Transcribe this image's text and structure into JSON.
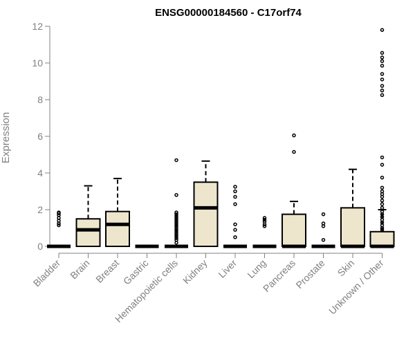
{
  "chart_data": {
    "type": "boxplot",
    "title": "ENSG00000184560 - C17orf74",
    "xlabel": "",
    "ylabel": "Expression",
    "ylim": [
      0,
      12
    ],
    "yticks": [
      0,
      2,
      4,
      6,
      8,
      10,
      12
    ],
    "grid": false,
    "colors": {
      "box_fill": "#ede6cc",
      "stroke": "#000000",
      "axis": "#808080"
    },
    "categories": [
      "Bladder",
      "Brain",
      "Breast",
      "Gastric",
      "Hematopoietic cells",
      "Kidney",
      "Liver",
      "Lung",
      "Pancreas",
      "Prostate",
      "Skin",
      "Unknown / Other"
    ],
    "boxes": [
      {
        "q1": 0,
        "median": 0,
        "q3": 0,
        "whisker_low": 0,
        "whisker_high": 0,
        "outliers": [
          1.15,
          1.25,
          1.4,
          1.55,
          1.7,
          1.8,
          1.85
        ]
      },
      {
        "q1": 0,
        "median": 0.9,
        "q3": 1.5,
        "whisker_low": 0,
        "whisker_high": 3.3,
        "outliers": []
      },
      {
        "q1": 0,
        "median": 1.2,
        "q3": 1.9,
        "whisker_low": 0,
        "whisker_high": 3.7,
        "outliers": []
      },
      {
        "q1": 0,
        "median": 0,
        "q3": 0,
        "whisker_low": 0,
        "whisker_high": 0,
        "outliers": []
      },
      {
        "q1": 0,
        "median": 0,
        "q3": 0,
        "whisker_low": 0,
        "whisker_high": 0,
        "outliers": [
          0.2,
          0.35,
          0.45,
          0.55,
          0.65,
          0.75,
          0.85,
          0.95,
          1.05,
          1.15,
          1.25,
          1.35,
          1.45,
          1.55,
          1.65,
          1.75,
          1.85,
          2.8,
          4.7
        ]
      },
      {
        "q1": 0,
        "median": 2.1,
        "q3": 3.5,
        "whisker_low": 0,
        "whisker_high": 4.65,
        "outliers": []
      },
      {
        "q1": 0,
        "median": 0,
        "q3": 0,
        "whisker_low": 0,
        "whisker_high": 0,
        "outliers": [
          0.5,
          0.9,
          1.2,
          2.3,
          2.7,
          3.0,
          3.25
        ]
      },
      {
        "q1": 0,
        "median": 0,
        "q3": 0,
        "whisker_low": 0,
        "whisker_high": 0,
        "outliers": [
          1.1,
          1.2,
          1.35,
          1.45,
          1.55
        ]
      },
      {
        "q1": 0,
        "median": 0,
        "q3": 1.75,
        "whisker_low": 0,
        "whisker_high": 2.45,
        "outliers": [
          5.15,
          6.05
        ]
      },
      {
        "q1": 0,
        "median": 0,
        "q3": 0,
        "whisker_low": 0,
        "whisker_high": 0,
        "outliers": [
          0.35,
          1.1,
          1.25,
          1.75
        ]
      },
      {
        "q1": 0,
        "median": 0,
        "q3": 2.1,
        "whisker_low": 0,
        "whisker_high": 4.2,
        "outliers": []
      },
      {
        "q1": 0,
        "median": 0,
        "q3": 0.8,
        "whisker_low": 0,
        "whisker_high": 2.0,
        "outliers": [
          0.9,
          1.0,
          1.15,
          1.3,
          1.45,
          1.6,
          1.75,
          1.9,
          2.1,
          2.3,
          2.5,
          2.7,
          2.85,
          3.0,
          3.2,
          3.75,
          4.45,
          4.85,
          8.25,
          8.5,
          8.75,
          9.1,
          9.4,
          9.85,
          10.1,
          10.3,
          10.55,
          11.8
        ]
      }
    ]
  }
}
